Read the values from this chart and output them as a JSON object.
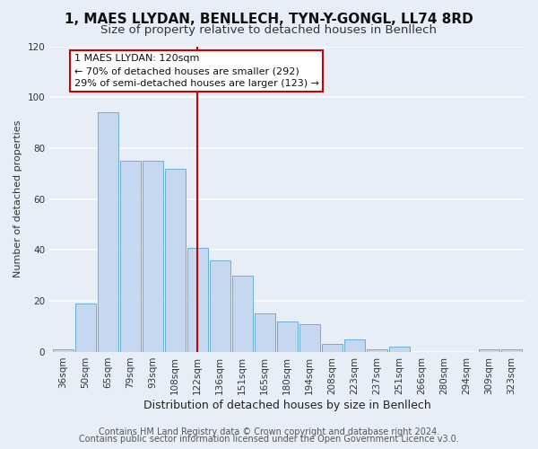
{
  "title": "1, MAES LLYDAN, BENLLECH, TYN-Y-GONGL, LL74 8RD",
  "subtitle": "Size of property relative to detached houses in Benllech",
  "xlabel": "Distribution of detached houses by size in Benllech",
  "ylabel": "Number of detached properties",
  "bar_labels": [
    "36sqm",
    "50sqm",
    "65sqm",
    "79sqm",
    "93sqm",
    "108sqm",
    "122sqm",
    "136sqm",
    "151sqm",
    "165sqm",
    "180sqm",
    "194sqm",
    "208sqm",
    "223sqm",
    "237sqm",
    "251sqm",
    "266sqm",
    "280sqm",
    "294sqm",
    "309sqm",
    "323sqm"
  ],
  "bar_values": [
    1,
    19,
    94,
    75,
    75,
    72,
    41,
    36,
    30,
    15,
    12,
    11,
    3,
    5,
    1,
    2,
    0,
    0,
    0,
    1,
    1
  ],
  "bar_color": "#c5d8f0",
  "bar_edge_color": "#6baed6",
  "highlight_index": 6,
  "highlight_line_color": "#cc0000",
  "ylim": [
    0,
    120
  ],
  "yticks": [
    0,
    20,
    40,
    60,
    80,
    100,
    120
  ],
  "annotation_title": "1 MAES LLYDAN: 120sqm",
  "annotation_line1": "← 70% of detached houses are smaller (292)",
  "annotation_line2": "29% of semi-detached houses are larger (123) →",
  "annotation_box_facecolor": "#ffffff",
  "annotation_box_edgecolor": "#cc0000",
  "footer_line1": "Contains HM Land Registry data © Crown copyright and database right 2024.",
  "footer_line2": "Contains public sector information licensed under the Open Government Licence v3.0.",
  "background_color": "#e8eef8",
  "grid_color": "#ffffff",
  "title_fontsize": 11,
  "subtitle_fontsize": 9.5,
  "xlabel_fontsize": 9,
  "ylabel_fontsize": 8,
  "tick_fontsize": 7.5,
  "annotation_fontsize": 8,
  "footer_fontsize": 7
}
